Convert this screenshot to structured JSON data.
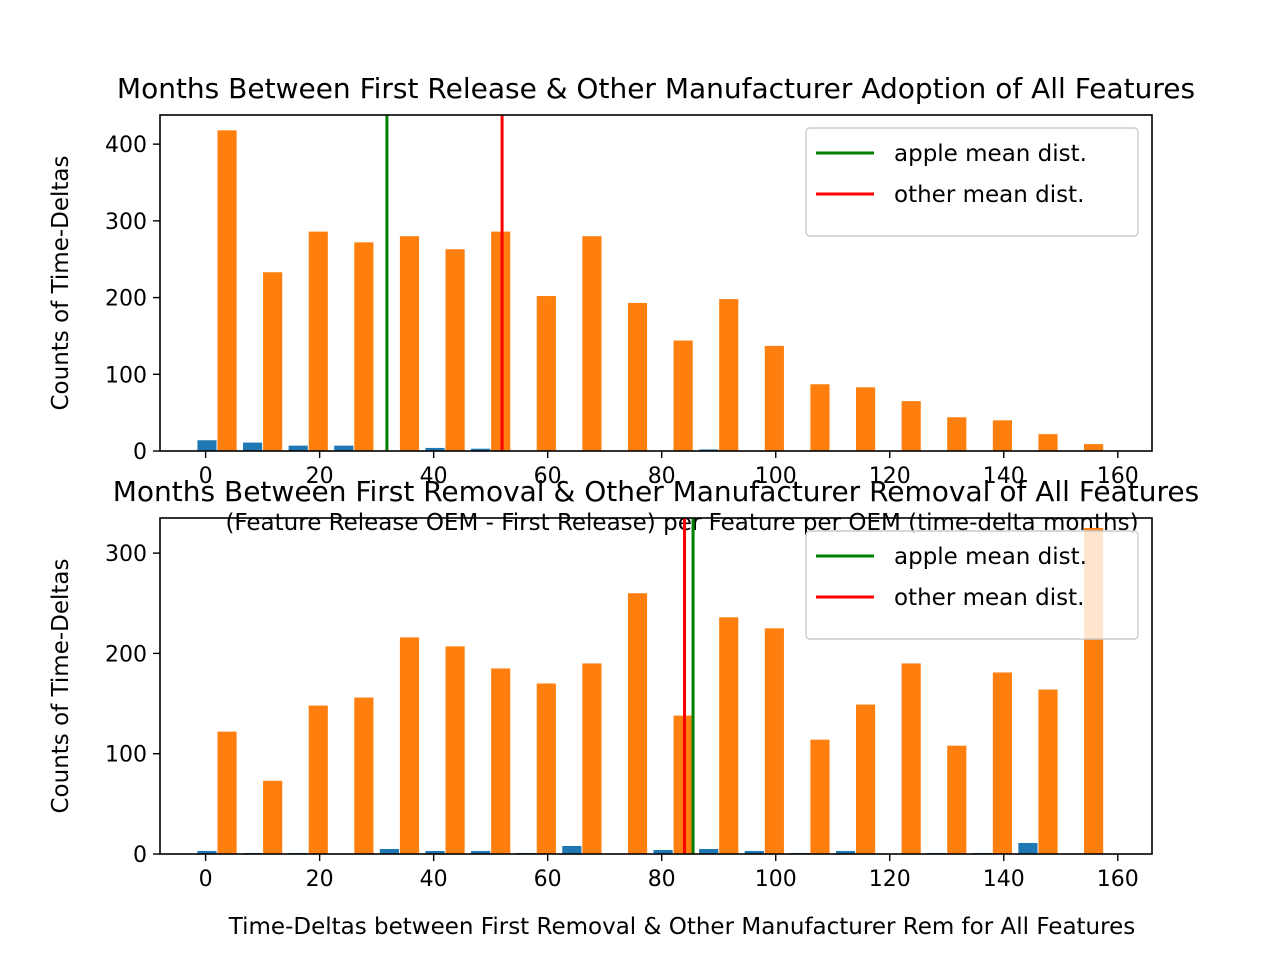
{
  "colors": {
    "apple_bar": "#1f77b4",
    "other_bar": "#ff7f0e",
    "apple_mean_line": "#008000",
    "other_mean_line": "#ff0000"
  },
  "chart_data": [
    {
      "type": "bar",
      "title": "Months Between First Release & Other Manufacturer Adoption of All Features",
      "xlabel": "(Feature Release OEM - First Release) per Feature per OEM (time-delta months)",
      "ylabel": "Counts of Time-Deltas",
      "xlim": [
        -8,
        166
      ],
      "ylim": [
        0,
        438
      ],
      "xticks": [
        0,
        20,
        40,
        60,
        80,
        100,
        120,
        140,
        160
      ],
      "yticks": [
        0,
        100,
        200,
        300,
        400
      ],
      "grid": false,
      "legend_position": "top-right",
      "bin_centers": [
        2,
        10,
        18,
        26,
        34,
        42,
        50,
        58,
        66,
        74,
        82,
        90,
        98,
        106,
        114,
        122,
        130,
        138,
        146,
        154
      ],
      "series": [
        {
          "name": "apple",
          "color_key": "apple_bar",
          "values": [
            14,
            11,
            7,
            7,
            0,
            4,
            3,
            0,
            0,
            0,
            0,
            2,
            0,
            0,
            0,
            0,
            0,
            0,
            0,
            0
          ]
        },
        {
          "name": "other",
          "color_key": "other_bar",
          "values": [
            418,
            233,
            286,
            272,
            280,
            263,
            286,
            202,
            280,
            193,
            144,
            198,
            137,
            87,
            83,
            65,
            44,
            40,
            22,
            9
          ]
        }
      ],
      "mean_lines": [
        {
          "label": "apple mean dist.",
          "x": 31.8,
          "color_key": "apple_mean_line"
        },
        {
          "label": "other mean dist.",
          "x": 52,
          "color_key": "other_mean_line"
        }
      ]
    },
    {
      "type": "bar",
      "title": "Months Between First Removal & Other Manufacturer Removal of All Features",
      "xlabel": "Time-Deltas between First Removal & Other Manufacturer Rem for All Features",
      "ylabel": "Counts of Time-Deltas",
      "xlim": [
        -8,
        166
      ],
      "ylim": [
        0,
        335
      ],
      "xticks": [
        0,
        20,
        40,
        60,
        80,
        100,
        120,
        140,
        160
      ],
      "yticks": [
        0,
        100,
        200,
        300
      ],
      "grid": false,
      "legend_position": "top-right",
      "bin_centers": [
        2,
        10,
        18,
        26,
        34,
        42,
        50,
        58,
        66,
        74,
        82,
        90,
        98,
        106,
        114,
        122,
        130,
        138,
        146,
        154
      ],
      "series": [
        {
          "name": "apple",
          "color_key": "apple_bar",
          "values": [
            3,
            1,
            1,
            0,
            5,
            3,
            3,
            1,
            8,
            0,
            4,
            5,
            3,
            1,
            3,
            0,
            1,
            1,
            11,
            0
          ]
        },
        {
          "name": "other",
          "color_key": "other_bar",
          "values": [
            122,
            73,
            148,
            156,
            216,
            207,
            185,
            170,
            190,
            260,
            138,
            236,
            225,
            114,
            149,
            190,
            108,
            181,
            164,
            325
          ]
        }
      ],
      "mean_lines": [
        {
          "label": "apple mean dist.",
          "x": 85.5,
          "color_key": "apple_mean_line"
        },
        {
          "label": "other mean dist.",
          "x": 84,
          "color_key": "other_mean_line"
        }
      ]
    }
  ]
}
